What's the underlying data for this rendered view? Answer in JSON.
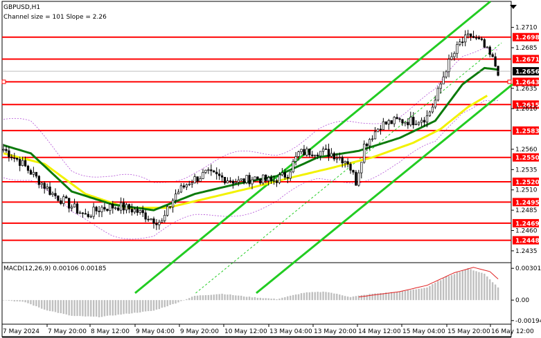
{
  "chart_data": {
    "type": "candlestick",
    "title": "GBPUSD,H1",
    "subtitle": "Channel size = 101 Slope = 2.26",
    "ylim": [
      1.2423,
      1.2742
    ],
    "yticks": [
      1.271,
      1.2685,
      1.2635,
      1.261,
      1.256,
      1.2535,
      1.251,
      1.2485,
      1.246,
      1.2435
    ],
    "ytick_labels": [
      "1.2710",
      "1.2685",
      "1.2635",
      "1.2610",
      "1.2560",
      "1.2535",
      "1.2510",
      "1.2485",
      "1.2460",
      "1.2435"
    ],
    "level_lines": [
      {
        "value": 1.2698,
        "label": "1.2698"
      },
      {
        "value": 1.2671,
        "label": "1.2671"
      },
      {
        "value": 1.2643,
        "label": "1.2643"
      },
      {
        "value": 1.2615,
        "label": "1.2615"
      },
      {
        "value": 1.2583,
        "label": "1.2583"
      },
      {
        "value": 1.255,
        "label": "1.2550"
      },
      {
        "value": 1.252,
        "label": "1.2520"
      },
      {
        "value": 1.2495,
        "label": "1.2495"
      },
      {
        "value": 1.2469,
        "label": "1.2469"
      },
      {
        "value": 1.2448,
        "label": "1.2448"
      }
    ],
    "current_price": {
      "value": 1.2656,
      "label": "1.2656"
    },
    "x_labels": [
      "7 May 2024",
      "7 May 20:00",
      "8 May 12:00",
      "9 May 04:00",
      "9 May 20:00",
      "10 May 12:00",
      "13 May 04:00",
      "13 May 20:00",
      "14 May 12:00",
      "15 May 04:00",
      "15 May 20:00",
      "16 May 12:00"
    ],
    "bar_count": 150,
    "close_anchors": [
      [
        0,
        1.256
      ],
      [
        6,
        1.2545
      ],
      [
        12,
        1.2525
      ],
      [
        18,
        1.2505
      ],
      [
        24,
        1.2492
      ],
      [
        30,
        1.2478
      ],
      [
        36,
        1.2488
      ],
      [
        42,
        1.249
      ],
      [
        48,
        1.2485
      ],
      [
        54,
        1.2475
      ],
      [
        58,
        1.247
      ],
      [
        63,
        1.2505
      ],
      [
        68,
        1.252
      ],
      [
        74,
        1.253
      ],
      [
        80,
        1.2525
      ],
      [
        86,
        1.252
      ],
      [
        92,
        1.2525
      ],
      [
        98,
        1.252
      ],
      [
        104,
        1.253
      ],
      [
        108,
        1.2555
      ],
      [
        114,
        1.2558
      ],
      [
        120,
        1.2555
      ],
      [
        126,
        1.2545
      ],
      [
        129,
        1.252
      ],
      [
        132,
        1.2565
      ],
      [
        138,
        1.259
      ],
      [
        144,
        1.2595
      ],
      [
        150,
        1.2595
      ],
      [
        155,
        1.26
      ],
      [
        158,
        1.262
      ],
      [
        162,
        1.266
      ],
      [
        167,
        1.269
      ],
      [
        171,
        1.27
      ],
      [
        175,
        1.269
      ],
      [
        179,
        1.267
      ],
      [
        181,
        1.2656
      ]
    ],
    "ma_green_anchors": [
      [
        0,
        1.2565
      ],
      [
        10,
        1.2555
      ],
      [
        25,
        1.2508
      ],
      [
        40,
        1.2492
      ],
      [
        55,
        1.2485
      ],
      [
        70,
        1.2505
      ],
      [
        85,
        1.2517
      ],
      [
        100,
        1.2527
      ],
      [
        115,
        1.255
      ],
      [
        130,
        1.2558
      ],
      [
        145,
        1.2574
      ],
      [
        158,
        1.2595
      ],
      [
        168,
        1.264
      ],
      [
        176,
        1.266
      ],
      [
        181,
        1.2658
      ]
    ],
    "ma_yellow_anchors": [
      [
        0,
        1.2555
      ],
      [
        15,
        1.2542
      ],
      [
        30,
        1.2505
      ],
      [
        45,
        1.2488
      ],
      [
        60,
        1.2488
      ],
      [
        75,
        1.25
      ],
      [
        90,
        1.2512
      ],
      [
        105,
        1.2525
      ],
      [
        120,
        1.2537
      ],
      [
        135,
        1.255
      ],
      [
        150,
        1.2568
      ],
      [
        160,
        1.2585
      ],
      [
        170,
        1.2612
      ],
      [
        177,
        1.2626
      ]
    ],
    "channel_upper": [
      [
        195,
        1.2383
      ],
      [
        708,
        1.2742
      ]
    ],
    "channel_lower": [
      [
        370,
        1.2383
      ],
      [
        740,
        1.264
      ]
    ],
    "macd": {
      "label": "MACD(12,26,9) 0.00106 0.00185",
      "ylim": [
        -0.00215,
        0.00335
      ],
      "yticks": [
        0.00301,
        0.0,
        -0.00194
      ],
      "ytick_labels": [
        "0.00301",
        "0.00",
        "-0.00194"
      ],
      "hist_anchors": [
        [
          0,
          0.0
        ],
        [
          8,
          -0.0002
        ],
        [
          15,
          -0.0009
        ],
        [
          25,
          -0.0015
        ],
        [
          35,
          -0.0016
        ],
        [
          45,
          -0.0013
        ],
        [
          55,
          -0.001
        ],
        [
          63,
          -0.0003
        ],
        [
          70,
          0.0004
        ],
        [
          80,
          0.0006
        ],
        [
          90,
          0.0003
        ],
        [
          100,
          0.0001
        ],
        [
          110,
          0.0007
        ],
        [
          118,
          0.0008
        ],
        [
          127,
          0.0003
        ],
        [
          135,
          0.0006
        ],
        [
          145,
          0.0008
        ],
        [
          155,
          0.0012
        ],
        [
          162,
          0.0022
        ],
        [
          170,
          0.003
        ],
        [
          176,
          0.0025
        ],
        [
          181,
          0.0012
        ]
      ],
      "signal_anchors": [
        [
          130,
          0.0003
        ],
        [
          145,
          0.0008
        ],
        [
          155,
          0.0014
        ],
        [
          165,
          0.0026
        ],
        [
          172,
          0.0031
        ],
        [
          178,
          0.0027
        ],
        [
          181,
          0.002
        ]
      ]
    }
  },
  "colors": {
    "level": "#ff0000",
    "current": "#000000",
    "up_candle": "#000000",
    "ma_green": "#0b7a0b",
    "ma_yellow": "#f2f200",
    "channel": "#22cc22",
    "bands": "#b34fd6",
    "macd_hist": "#bfbfbf",
    "macd_signal": "#e02020"
  }
}
